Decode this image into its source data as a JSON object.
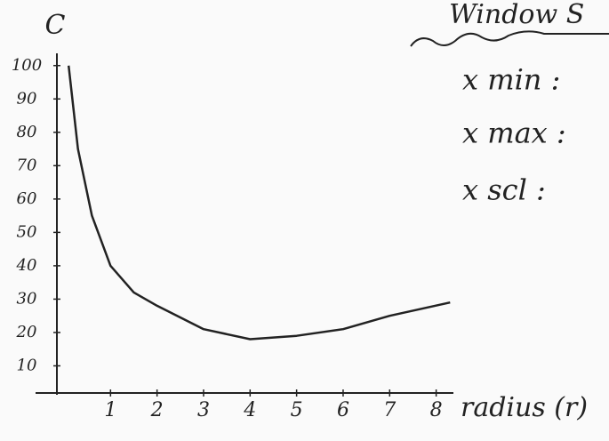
{
  "chart_data": {
    "type": "line",
    "y_label": "C",
    "x_label": "radius (r)",
    "annotations": [
      "Window S",
      "x min :",
      "x max :",
      "x scl :"
    ],
    "x": [
      0.1,
      0.3,
      0.6,
      1,
      1.5,
      2,
      3,
      4,
      5,
      6,
      7,
      8.3
    ],
    "series": [
      {
        "name": "C",
        "color": "#222222",
        "values": [
          100,
          75,
          55,
          40,
          32,
          28,
          21,
          18,
          19,
          21,
          25,
          29
        ]
      }
    ],
    "xlim": [
      0,
      8.6
    ],
    "ylim": [
      0,
      105
    ],
    "xticks": [
      1,
      2,
      3,
      4,
      5,
      6,
      7,
      8
    ],
    "yticks": [
      10,
      20,
      30,
      40,
      50,
      60,
      70,
      80,
      90,
      100
    ]
  }
}
